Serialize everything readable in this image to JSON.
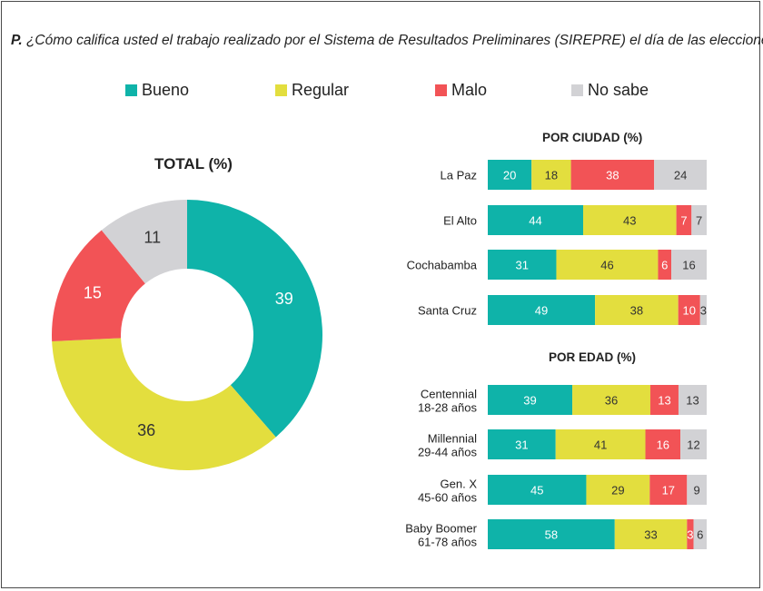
{
  "question": {
    "prefix": "P.",
    "text": "¿Cómo califica usted el trabajo realizado por el Sistema de Resultados Preliminares (SIREPRE) el día de las elecciones?"
  },
  "colors": {
    "bueno": "#0fb3a9",
    "regular": "#e3de3e",
    "malo": "#f25356",
    "nosabe": "#d2d2d5"
  },
  "legend": [
    {
      "label": "Bueno",
      "color": "#0fb3a9"
    },
    {
      "label": "Regular",
      "color": "#e3de3e"
    },
    {
      "label": "Malo",
      "color": "#f25356"
    },
    {
      "label": "No sabe",
      "color": "#d2d2d5"
    }
  ],
  "chart_data": [
    {
      "type": "pie",
      "title": "TOTAL (%)",
      "categories": [
        "Bueno",
        "Regular",
        "Malo",
        "No sabe"
      ],
      "values": [
        39,
        36,
        15,
        11
      ]
    },
    {
      "type": "bar",
      "title": "POR CIUDAD (%)",
      "stacked": true,
      "orientation": "horizontal",
      "categories": [
        "La Paz",
        "El Alto",
        "Cochabamba",
        "Santa Cruz"
      ],
      "series": [
        {
          "name": "Bueno",
          "values": [
            20,
            44,
            31,
            49
          ]
        },
        {
          "name": "Regular",
          "values": [
            18,
            43,
            46,
            38
          ]
        },
        {
          "name": "Malo",
          "values": [
            38,
            7,
            6,
            10
          ]
        },
        {
          "name": "No sabe",
          "values": [
            24,
            7,
            16,
            3
          ]
        }
      ]
    },
    {
      "type": "bar",
      "title": "POR EDAD (%)",
      "stacked": true,
      "orientation": "horizontal",
      "categories": [
        [
          "Centennial",
          "18-28 años"
        ],
        [
          "Millennial",
          "29-44 años"
        ],
        [
          "Gen. X",
          "45-60 años"
        ],
        [
          "Baby Boomer",
          "61-78 años"
        ]
      ],
      "series": [
        {
          "name": "Bueno",
          "values": [
            39,
            31,
            45,
            58
          ]
        },
        {
          "name": "Regular",
          "values": [
            36,
            41,
            29,
            33
          ]
        },
        {
          "name": "Malo",
          "values": [
            13,
            16,
            17,
            3
          ]
        },
        {
          "name": "No sabe",
          "values": [
            13,
            12,
            9,
            6
          ]
        }
      ]
    }
  ]
}
